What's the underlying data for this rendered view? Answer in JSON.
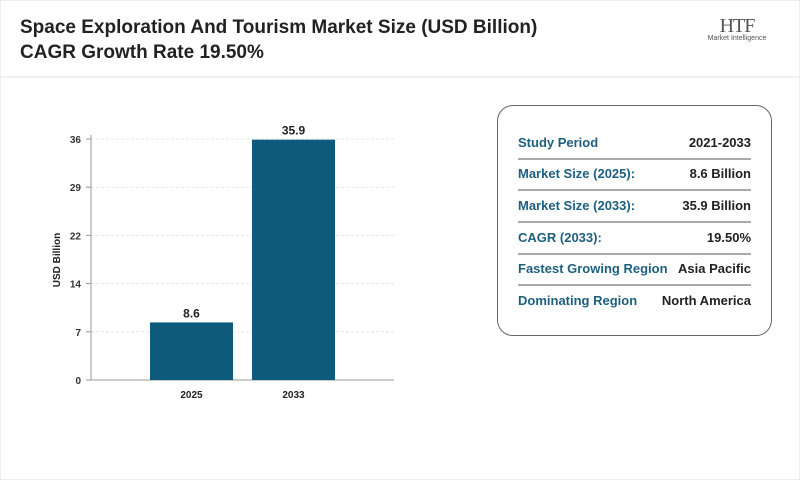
{
  "header": {
    "title": "Space Exploration And Tourism Market Size (USD Billion) CAGR Growth Rate 19.50%",
    "logo_text": "HTF",
    "logo_sub": "Market Intelligence"
  },
  "chart_data": {
    "type": "bar",
    "categories": [
      "2025",
      "2033"
    ],
    "values": [
      8.6,
      35.9
    ],
    "data_labels": [
      "8.6",
      "35.9"
    ],
    "ylabel": "USD Billion",
    "xlabel": "",
    "ylim": [
      0,
      36
    ],
    "yticks": [
      "0",
      "7",
      "14",
      "22",
      "29",
      "36"
    ],
    "grid": true,
    "bar_color": "#0d5a7d"
  },
  "summary": {
    "rows": [
      {
        "label": "Study Period",
        "value": "2021-2033"
      },
      {
        "label": "Market Size (2025):",
        "value": "8.6 Billion"
      },
      {
        "label": "Market Size (2033):",
        "value": "35.9 Billion"
      },
      {
        "label": "CAGR (2033):",
        "value": "19.50%"
      },
      {
        "label": "Fastest Growing Region",
        "value": "Asia Pacific"
      },
      {
        "label": "Dominating Region",
        "value": "North America"
      }
    ]
  }
}
